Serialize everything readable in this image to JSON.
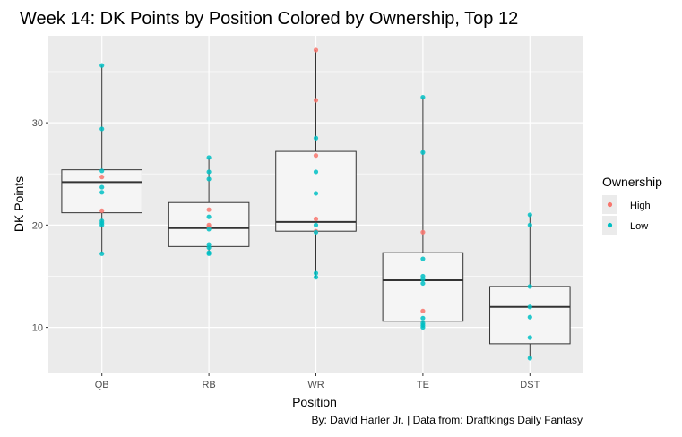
{
  "chart_data": {
    "type": "boxplot",
    "title": "Week 14: DK Points by Position Colored by Ownership, Top 12",
    "xlabel": "Position",
    "ylabel": "DK Points",
    "caption": "By: David Harler Jr. | Data from: Draftkings Daily Fantasy",
    "categories": [
      "QB",
      "RB",
      "WR",
      "TE",
      "DST"
    ],
    "ylim": [
      5.5,
      38.5
    ],
    "yticks": [
      10,
      20,
      30
    ],
    "grid": true,
    "legend": {
      "title": "Ownership",
      "position": "right",
      "entries": [
        {
          "name": "High",
          "color": "#F8766D"
        },
        {
          "name": "Low",
          "color": "#00BFC4"
        }
      ]
    },
    "boxes": [
      {
        "category": "QB",
        "min": 17.2,
        "q1": 21.2,
        "median": 24.2,
        "q3": 25.4,
        "max": 35.6
      },
      {
        "category": "RB",
        "min": 17.2,
        "q1": 17.9,
        "median": 19.7,
        "q3": 22.2,
        "max": 26.6
      },
      {
        "category": "WR",
        "min": 14.9,
        "q1": 19.4,
        "median": 20.3,
        "q3": 27.2,
        "max": 37.1
      },
      {
        "category": "TE",
        "min": 10.0,
        "q1": 10.6,
        "median": 14.6,
        "q3": 17.3,
        "max": 32.5
      },
      {
        "category": "DST",
        "min": 7.0,
        "q1": 8.4,
        "median": 12.0,
        "q3": 14.0,
        "max": 21.0
      }
    ],
    "series": [
      {
        "name": "High",
        "color": "#F8766D",
        "points": [
          {
            "x": "QB",
            "y": 24.7
          },
          {
            "x": "QB",
            "y": 21.4
          },
          {
            "x": "RB",
            "y": 21.5
          },
          {
            "x": "RB",
            "y": 19.8
          },
          {
            "x": "RB",
            "y": 20.0
          },
          {
            "x": "WR",
            "y": 37.1
          },
          {
            "x": "WR",
            "y": 32.2
          },
          {
            "x": "WR",
            "y": 26.8
          },
          {
            "x": "WR",
            "y": 20.6
          },
          {
            "x": "WR",
            "y": 19.4
          },
          {
            "x": "TE",
            "y": 19.3
          },
          {
            "x": "TE",
            "y": 11.6
          }
        ]
      },
      {
        "name": "Low",
        "color": "#00BFC4",
        "points": [
          {
            "x": "QB",
            "y": 35.6
          },
          {
            "x": "QB",
            "y": 29.4
          },
          {
            "x": "QB",
            "y": 25.3
          },
          {
            "x": "QB",
            "y": 23.7
          },
          {
            "x": "QB",
            "y": 23.2
          },
          {
            "x": "QB",
            "y": 20.4
          },
          {
            "x": "QB",
            "y": 20.2
          },
          {
            "x": "QB",
            "y": 20.0
          },
          {
            "x": "QB",
            "y": 17.2
          },
          {
            "x": "RB",
            "y": 26.6
          },
          {
            "x": "RB",
            "y": 25.2
          },
          {
            "x": "RB",
            "y": 24.5
          },
          {
            "x": "RB",
            "y": 20.8
          },
          {
            "x": "RB",
            "y": 18.1
          },
          {
            "x": "RB",
            "y": 17.8
          },
          {
            "x": "RB",
            "y": 17.3
          },
          {
            "x": "RB",
            "y": 17.2
          },
          {
            "x": "RB",
            "y": 19.6
          },
          {
            "x": "WR",
            "y": 28.5
          },
          {
            "x": "WR",
            "y": 23.1
          },
          {
            "x": "WR",
            "y": 20.0
          },
          {
            "x": "WR",
            "y": 19.3
          },
          {
            "x": "WR",
            "y": 15.3
          },
          {
            "x": "WR",
            "y": 14.9
          },
          {
            "x": "WR",
            "y": 25.2
          },
          {
            "x": "TE",
            "y": 32.5
          },
          {
            "x": "TE",
            "y": 27.1
          },
          {
            "x": "TE",
            "y": 16.7
          },
          {
            "x": "TE",
            "y": 15.0
          },
          {
            "x": "TE",
            "y": 14.7
          },
          {
            "x": "TE",
            "y": 14.3
          },
          {
            "x": "TE",
            "y": 10.9
          },
          {
            "x": "TE",
            "y": 10.4
          },
          {
            "x": "TE",
            "y": 10.2
          },
          {
            "x": "TE",
            "y": 10.0
          },
          {
            "x": "DST",
            "y": 21.0
          },
          {
            "x": "DST",
            "y": 20.0
          },
          {
            "x": "DST",
            "y": 14.0
          },
          {
            "x": "DST",
            "y": 12.0
          },
          {
            "x": "DST",
            "y": 11.0
          },
          {
            "x": "DST",
            "y": 9.0
          },
          {
            "x": "DST",
            "y": 7.0
          }
        ]
      }
    ]
  }
}
